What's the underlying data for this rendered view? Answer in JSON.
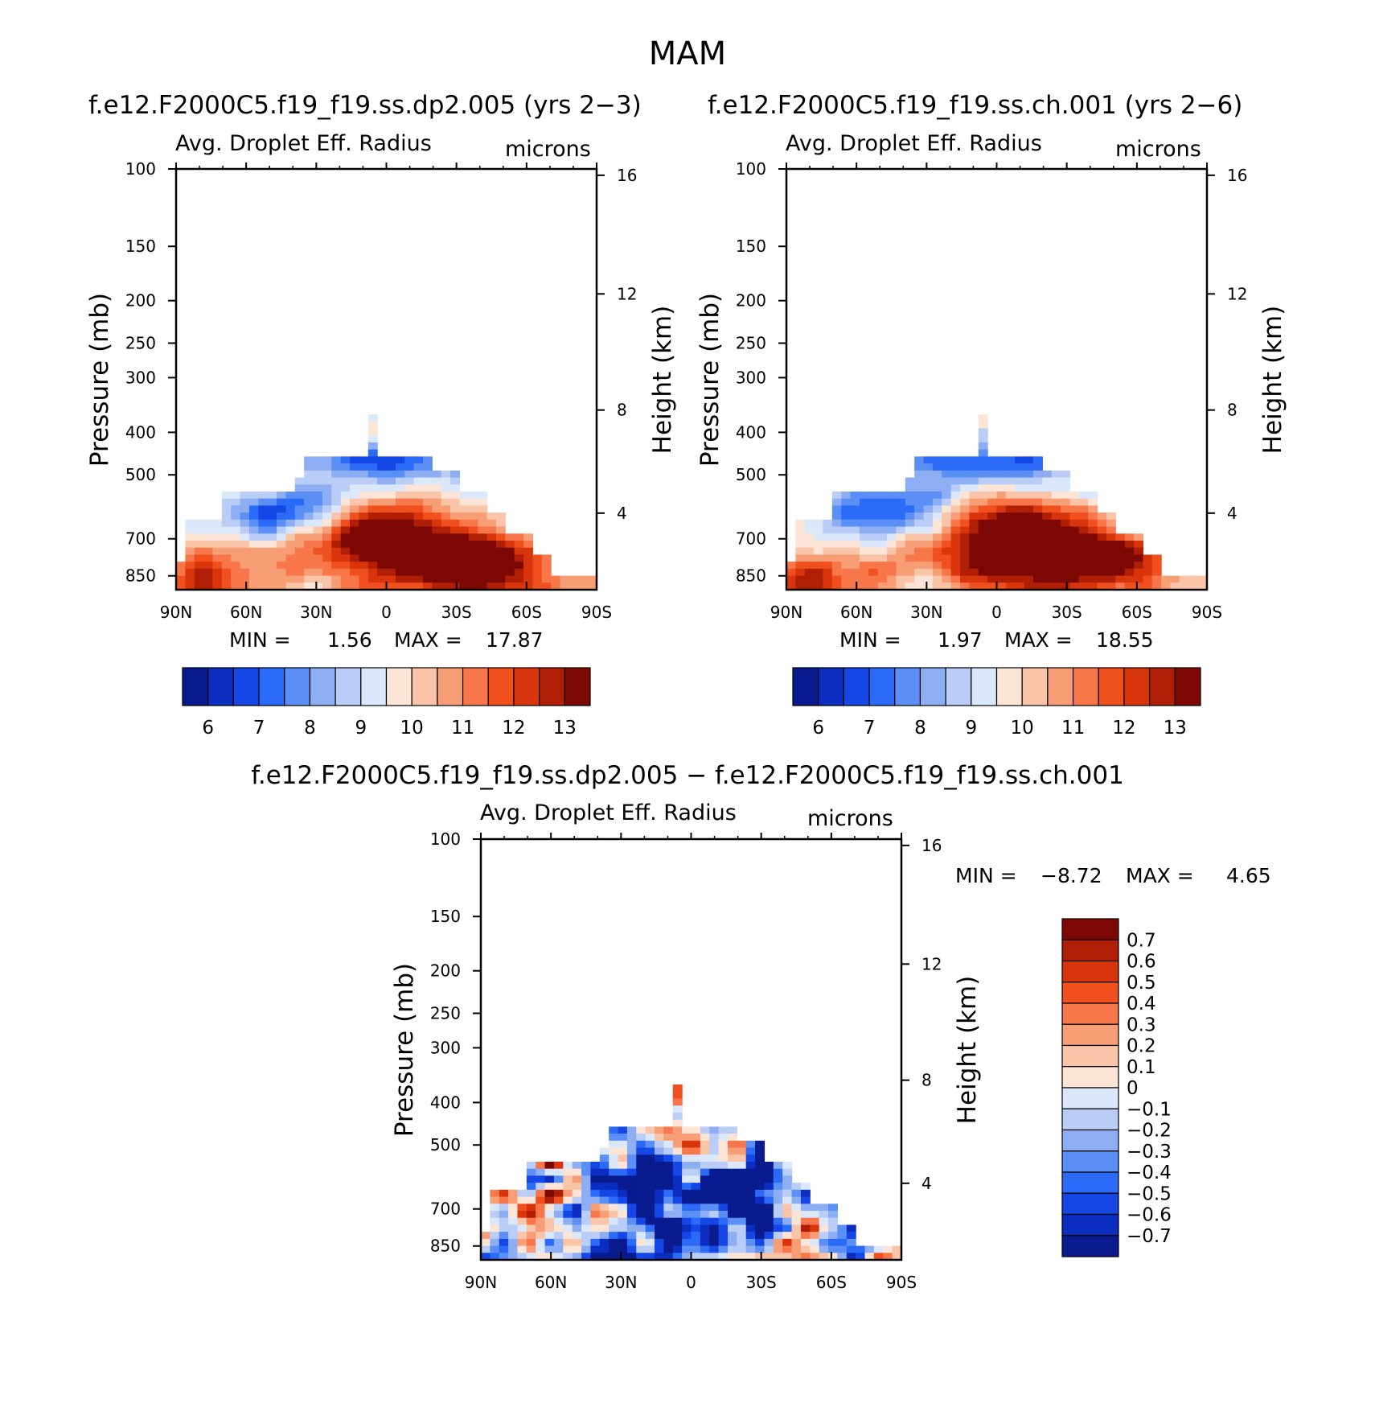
{
  "figure": {
    "title": "MAM",
    "bg_color": "#ffffff"
  },
  "chart_data": [
    {
      "type": "heatmap",
      "id": "panel-a",
      "title": "f.e12.F2000C5.f19_f19.ss.dp2.005 (yrs 2−3)",
      "variable": "Avg. Droplet Eff. Radius",
      "units": "microns",
      "ylabel": "Pressure (mb)",
      "y2label": "Height (km)",
      "x_ticks": [
        "90N",
        "60N",
        "30N",
        "0",
        "30S",
        "60S",
        "90S"
      ],
      "y_ticks": [
        "100",
        "150",
        "200",
        "250",
        "300",
        "400",
        "500",
        "700",
        "850"
      ],
      "y2_ticks": [
        "16",
        "12",
        "8",
        "4"
      ],
      "min_label": "MIN =",
      "min": "1.56",
      "max_label": "MAX =",
      "max": "17.87",
      "colorbar": {
        "orientation": "horizontal",
        "labels": [
          "6",
          "7",
          "8",
          "9",
          "10",
          "11",
          "12",
          "13"
        ],
        "colors": [
          "#0a1a8f",
          "#0b2dc0",
          "#1546e6",
          "#2c6bf8",
          "#5b8ff6",
          "#8daef3",
          "#b9cdf6",
          "#dbe8fb",
          "#fce5d6",
          "#f9c4a8",
          "#f89e76",
          "#f7774b",
          "#f0501e",
          "#d9350d",
          "#b01e06",
          "#7d0803"
        ]
      }
    },
    {
      "type": "heatmap",
      "id": "panel-b",
      "title": "f.e12.F2000C5.f19_f19.ss.ch.001 (yrs 2−6)",
      "variable": "Avg. Droplet Eff. Radius",
      "units": "microns",
      "ylabel": "Pressure (mb)",
      "y2label": "Height (km)",
      "x_ticks": [
        "90N",
        "60N",
        "30N",
        "0",
        "30S",
        "60S",
        "90S"
      ],
      "y_ticks": [
        "100",
        "150",
        "200",
        "250",
        "300",
        "400",
        "500",
        "700",
        "850"
      ],
      "y2_ticks": [
        "16",
        "12",
        "8",
        "4"
      ],
      "min_label": "MIN =",
      "min": "1.97",
      "max_label": "MAX =",
      "max": "18.55",
      "colorbar": {
        "orientation": "horizontal",
        "labels": [
          "6",
          "7",
          "8",
          "9",
          "10",
          "11",
          "12",
          "13"
        ],
        "colors": [
          "#0a1a8f",
          "#0b2dc0",
          "#1546e6",
          "#2c6bf8",
          "#5b8ff6",
          "#8daef3",
          "#b9cdf6",
          "#dbe8fb",
          "#fce5d6",
          "#f9c4a8",
          "#f89e76",
          "#f7774b",
          "#f0501e",
          "#d9350d",
          "#b01e06",
          "#7d0803"
        ]
      }
    },
    {
      "type": "heatmap",
      "id": "panel-c",
      "title": "f.e12.F2000C5.f19_f19.ss.dp2.005 − f.e12.F2000C5.f19_f19.ss.ch.001",
      "variable": "Avg. Droplet Eff. Radius",
      "units": "microns",
      "ylabel": "Pressure (mb)",
      "y2label": "Height (km)",
      "x_ticks": [
        "90N",
        "60N",
        "30N",
        "0",
        "30S",
        "60S",
        "90S"
      ],
      "y_ticks": [
        "100",
        "150",
        "200",
        "250",
        "300",
        "400",
        "500",
        "700",
        "850"
      ],
      "y2_ticks": [
        "16",
        "12",
        "8",
        "4"
      ],
      "min_label": "MIN =",
      "min": "−8.72",
      "max_label": "MAX =",
      "max": "4.65",
      "colorbar": {
        "orientation": "vertical",
        "labels": [
          "0.7",
          "0.6",
          "0.5",
          "0.4",
          "0.3",
          "0.2",
          "0.1",
          "0",
          "−0.1",
          "−0.2",
          "−0.3",
          "−0.4",
          "−0.5",
          "−0.6",
          "−0.7"
        ],
        "colors": [
          "#7d0803",
          "#b01e06",
          "#d9350d",
          "#f0501e",
          "#f7774b",
          "#f89e76",
          "#f9c4a8",
          "#fce5d6",
          "#dbe8fb",
          "#b9cdf6",
          "#8daef3",
          "#5b8ff6",
          "#2c6bf8",
          "#1546e6",
          "#0b2dc0",
          "#0a1a8f"
        ]
      }
    }
  ]
}
